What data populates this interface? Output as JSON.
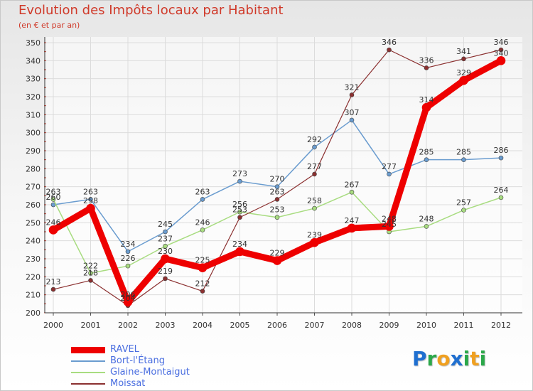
{
  "title": "Evolution des Impôts locaux par Habitant",
  "subtitle": "(en € et par an)",
  "logo": {
    "letters": [
      {
        "ch": "P",
        "color": "#1f6fd0"
      },
      {
        "ch": "r",
        "color": "#2ba84a"
      },
      {
        "ch": "o",
        "color": "#f0a020"
      },
      {
        "ch": "x",
        "color": "#1f6fd0"
      },
      {
        "ch": "i",
        "color": "#2ba84a"
      },
      {
        "ch": "t",
        "color": "#f0a020"
      },
      {
        "ch": "i",
        "color": "#2ba84a"
      }
    ]
  },
  "chart_data": {
    "type": "line",
    "title": "Evolution des Impôts locaux par Habitant",
    "subtitle": "(en € et par an)",
    "xlabel": "",
    "ylabel": "",
    "ylim": [
      200,
      350
    ],
    "ytick_step": 10,
    "grid": true,
    "legend_position": "bottom-left",
    "x": [
      "2000",
      "2001",
      "2002",
      "2003",
      "2004",
      "2005",
      "2006",
      "2007",
      "2008",
      "2009",
      "2010",
      "2011",
      "2012"
    ],
    "series": [
      {
        "name": "RAVEL",
        "color": "#ee0000",
        "width": 9,
        "values": [
          246,
          258,
          206,
          230,
          225,
          234,
          229,
          239,
          247,
          248,
          314,
          329,
          340
        ]
      },
      {
        "name": "Bort-l'Étang",
        "color": "#6a9ccf",
        "width": 1.5,
        "values": [
          260,
          263,
          234,
          245,
          263,
          273,
          270,
          292,
          307,
          277,
          285,
          285,
          286
        ]
      },
      {
        "name": "Glaine-Montaigut",
        "color": "#a8dc80",
        "width": 1.5,
        "values": [
          263,
          222,
          226,
          237,
          246,
          256,
          253,
          258,
          267,
          245,
          248,
          257,
          264
        ]
      },
      {
        "name": "Moissat",
        "color": "#8b3030",
        "width": 1.2,
        "values": [
          213,
          218,
          204,
          219,
          212,
          253,
          263,
          277,
          321,
          346,
          336,
          341,
          346
        ]
      }
    ],
    "data_labels": [
      {
        "series": "RAVEL",
        "labels": [
          "246",
          "258",
          "206",
          "230",
          "225",
          "234",
          "229",
          "239",
          "247",
          "248",
          "314",
          "329",
          "340"
        ]
      },
      {
        "series": "Bort-l'Étang",
        "labels": [
          "260",
          "263",
          "234",
          "245",
          "263",
          "273",
          "270",
          "292",
          "307",
          "277",
          "285",
          "285",
          "286"
        ]
      },
      {
        "series": "Glaine-Montaigut",
        "labels": [
          "263",
          "222",
          "226",
          "237",
          "246",
          "256",
          "253",
          "258",
          "267",
          "245",
          "248",
          "257",
          "264"
        ]
      },
      {
        "series": "Moissat",
        "labels": [
          "213",
          "218",
          "204",
          "219",
          "212",
          "253",
          "263",
          "277",
          "321",
          "346",
          "336",
          "341",
          "346"
        ]
      }
    ]
  }
}
